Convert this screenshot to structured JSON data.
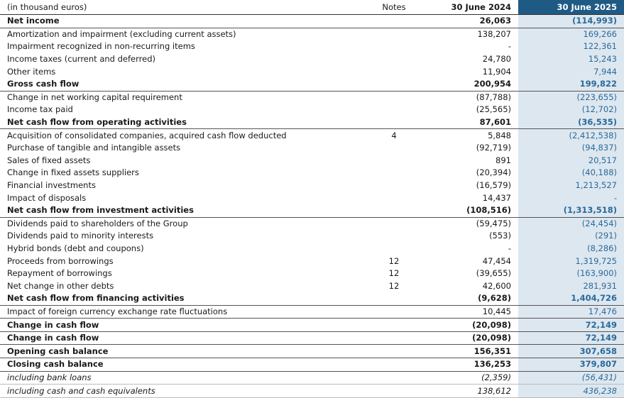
{
  "header": {
    "label": "(in thousand euros)",
    "notes": "Notes",
    "col_2024": "30 June 2024",
    "col_2025": "30 June 2025"
  },
  "rows": [
    {
      "label": "Net income",
      "col_2024": "26,063",
      "col_2025": "(114,993)"
    },
    {
      "label": "Amortization and impairment (excluding current assets)",
      "col_2024": "138,207",
      "col_2025": "169,266"
    },
    {
      "label": "Impairment recognized in non-recurring items",
      "col_2024": "-",
      "col_2025": "122,361"
    },
    {
      "label": "Income taxes (current and deferred)",
      "col_2024": "24,780",
      "col_2025": "15,243"
    },
    {
      "label": "Other items",
      "col_2024": "11,904",
      "col_2025": "7,944"
    },
    {
      "label": "Gross cash flow",
      "col_2024": "200,954",
      "col_2025": "199,822"
    },
    {
      "label": "Change in net working capital requirement",
      "col_2024": "(87,788)",
      "col_2025": "(223,655)"
    },
    {
      "label": "Income tax paid",
      "col_2024": "(25,565)",
      "col_2025": "(12,702)"
    },
    {
      "label": "Net cash flow from operating activities",
      "col_2024": "87,601",
      "col_2025": "(36,535)"
    },
    {
      "label": "Acquisition of consolidated companies, acquired cash flow deducted",
      "notes": "4",
      "col_2024": "5,848",
      "col_2025": "(2,412,538)"
    },
    {
      "label": "Purchase of tangible and intangible assets",
      "col_2024": "(92,719)",
      "col_2025": "(94,837)"
    },
    {
      "label": "Sales of fixed assets",
      "col_2024": "891",
      "col_2025": "20,517"
    },
    {
      "label": "Change in fixed assets suppliers",
      "col_2024": "(20,394)",
      "col_2025": "(40,188)"
    },
    {
      "label": "Financial investments",
      "col_2024": "(16,579)",
      "col_2025": "1,213,527"
    },
    {
      "label": "Impact of disposals",
      "col_2024": "14,437",
      "col_2025": "-"
    },
    {
      "label": "Net cash flow from investment activities",
      "col_2024": "(108,516)",
      "col_2025": "(1,313,518)"
    },
    {
      "label": "Dividends paid to shareholders of the Group",
      "col_2024": "(59,475)",
      "col_2025": "(24,454)"
    },
    {
      "label": "Dividends paid to minority interests",
      "col_2024": "(553)",
      "col_2025": "(291)"
    },
    {
      "label": "Hybrid bonds (debt and coupons)",
      "col_2024": "-",
      "col_2025": "(8,286)"
    },
    {
      "label": "Proceeds from borrowings",
      "notes": "12",
      "col_2024": "47,454",
      "col_2025": "1,319,725"
    },
    {
      "label": "Repayment of borrowings",
      "notes": "12",
      "col_2024": "(39,655)",
      "col_2025": "(163,900)"
    },
    {
      "label": "Net change in other debts",
      "notes": "12",
      "col_2024": "42,600",
      "col_2025": "281,931"
    },
    {
      "label": "Net cash flow from financing activities",
      "col_2024": "(9,628)",
      "col_2025": "1,404,726"
    },
    {
      "label": "Impact of foreign currency exchange rate fluctuations",
      "col_2024": "10,445",
      "col_2025": "17,476"
    },
    {
      "label": "Change in cash flow",
      "col_2024": "(20,098)",
      "col_2025": "72,149"
    },
    {
      "label": "Change in cash flow",
      "col_2024": "(20,098)",
      "col_2025": "72,149"
    },
    {
      "label": "Opening cash balance",
      "col_2024": "156,351",
      "col_2025": "307,658"
    },
    {
      "label": "Closing cash balance",
      "col_2024": "136,253",
      "col_2025": "379,807"
    },
    {
      "label": "including bank loans",
      "col_2024": "(2,359)",
      "col_2025": "(56,431)"
    },
    {
      "label": "including cash and cash equivalents",
      "col_2024": "138,612",
      "col_2025": "436,238"
    }
  ]
}
